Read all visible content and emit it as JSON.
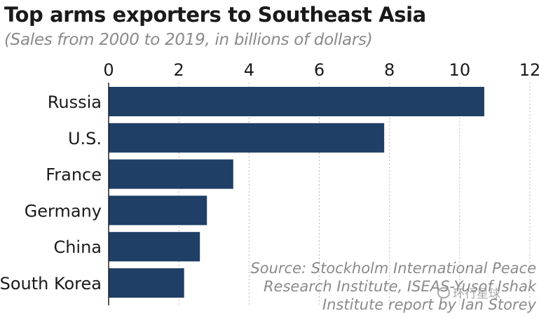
{
  "chart_data": {
    "type": "bar",
    "orientation": "horizontal",
    "title": "Top arms exporters to Southeast Asia",
    "subtitle": "(Sales from 2000 to 2019, in billions of dollars)",
    "categories": [
      "Russia",
      "U.S.",
      "France",
      "Germany",
      "China",
      "South Korea"
    ],
    "values": [
      10.7,
      7.85,
      3.55,
      2.8,
      2.6,
      2.15
    ],
    "xlim": [
      0,
      12
    ],
    "xticks": [
      0,
      2,
      4,
      6,
      8,
      10,
      12
    ],
    "grid": true,
    "bar_color": "#1f3f66",
    "source_lines": [
      "Source: Stockholm International Peace",
      "Research Institute, ISEAS-Yusof Ishak",
      "Institute report by Ian Storey"
    ]
  },
  "watermark": "环行星球"
}
